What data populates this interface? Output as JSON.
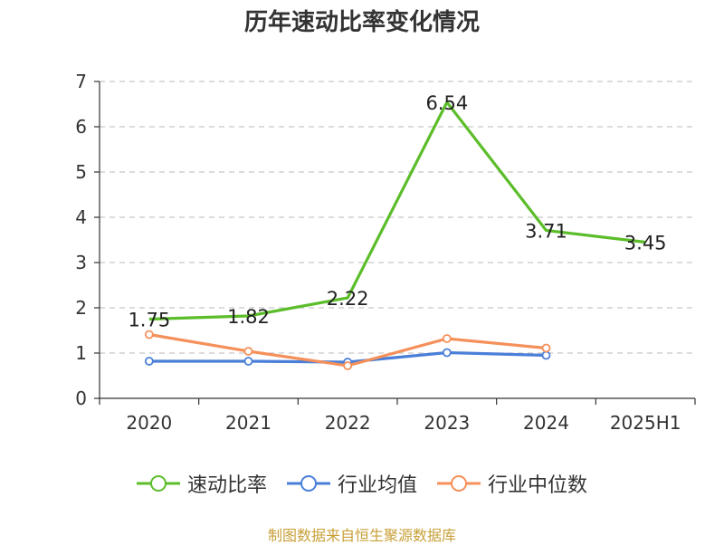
{
  "chart_data": {
    "type": "line",
    "title": "历年速动比率变化情况",
    "categories": [
      "2020",
      "2021",
      "2022",
      "2023",
      "2024",
      "2025H1"
    ],
    "ylim": [
      0,
      7
    ],
    "yticks": [
      0,
      1,
      2,
      3,
      4,
      5,
      6,
      7
    ],
    "grid": true,
    "legend_position": "bottom",
    "series": [
      {
        "name": "速动比率",
        "color": "#5cbd2a",
        "values": [
          1.75,
          1.82,
          2.22,
          6.54,
          3.71,
          3.45
        ],
        "labels": [
          "1.75",
          "1.82",
          "2.22",
          "6.54",
          "3.71",
          "3.45"
        ]
      },
      {
        "name": "行业均值",
        "color": "#4a7fd8",
        "values": [
          0.82,
          0.82,
          0.8,
          1.01,
          0.95,
          null
        ]
      },
      {
        "name": "行业中位数",
        "color": "#f5905a",
        "values": [
          1.41,
          1.04,
          0.72,
          1.32,
          1.11,
          null
        ]
      }
    ]
  },
  "source": "制图数据来自恒生聚源数据库"
}
